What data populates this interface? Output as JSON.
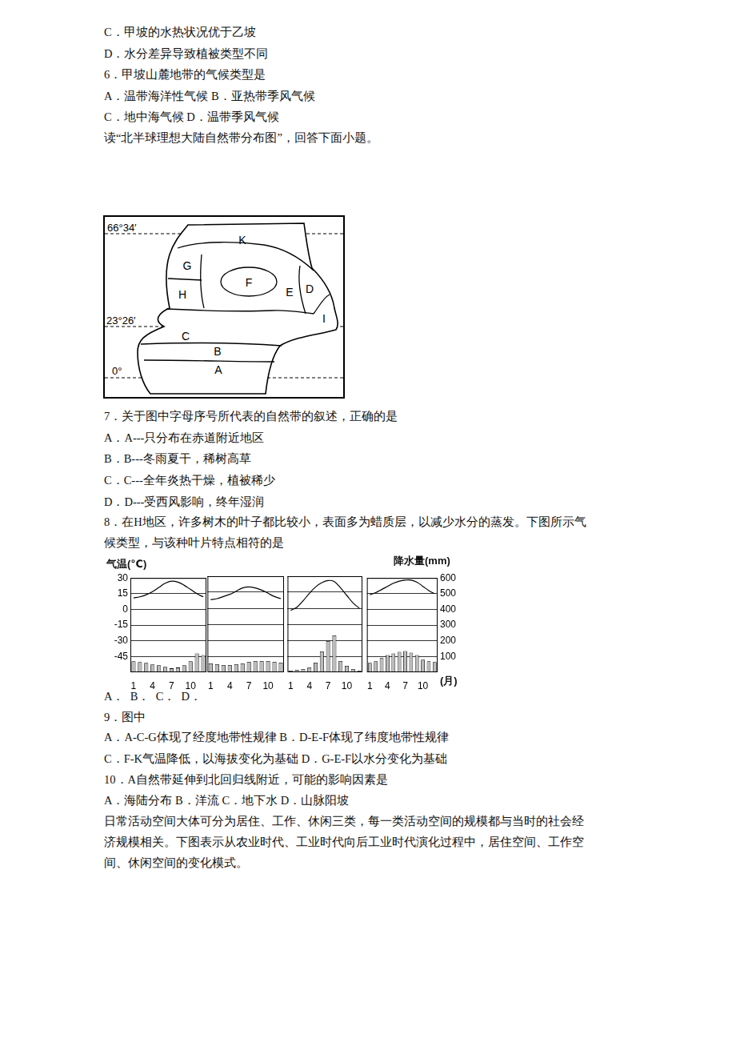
{
  "lines_top": [
    "C．甲坡的水热状况优于乙坡",
    "D．水分差异导致植被类型不同",
    "6．甲坡山麓地带的气候类型是",
    "A．温带海洋性气候 B．亚热带季风气候",
    "C．地中海气候 D．温带季风气候",
    "读“北半球理想大陆自然带分布图”，回答下面小题。"
  ],
  "map": {
    "latitudes": [
      "66°34′",
      "23°26′",
      "0°"
    ],
    "zones": [
      "K",
      "G",
      "F",
      "H",
      "E",
      "D",
      "I",
      "C",
      "B",
      "A"
    ]
  },
  "lines_middle": [
    "7．关于图中字母序号所代表的自然带的叙述，正确的是",
    "A．A---只分布在赤道附近地区",
    "B．B---冬雨夏干，稀树高草",
    "C．C---全年炎热干燥，植被稀少",
    "D．D---受西风影响，终年湿润",
    "8．在H地区，许多树木的叶子都比较小，表面多为蜡质层，以减少水分的蒸发。下图所示气",
    "候类型，与该种叶片特点相符的是"
  ],
  "chart_data": [
    {
      "type": "bar",
      "y_label": "气温(℃)",
      "categories": [
        "1",
        null,
        null,
        "4",
        null,
        null,
        "7",
        null,
        null,
        "10",
        null,
        null
      ],
      "series": [
        {
          "type": "line",
          "color": "#000000",
          "values": [
            11,
            12,
            14,
            17,
            21,
            25,
            27,
            26,
            23,
            19,
            15,
            12
          ]
        },
        {
          "type": "bar",
          "axis": "y2",
          "color": "#bbbbbb",
          "values": [
            70,
            65,
            60,
            50,
            45,
            35,
            25,
            30,
            45,
            70,
            120,
            110
          ]
        }
      ],
      "ylim": [
        -60,
        30
      ],
      "yticks": [
        30,
        15,
        0,
        -15,
        -30,
        -45
      ],
      "y2lim": [
        0,
        600
      ],
      "grid": true
    },
    {
      "type": "bar",
      "categories": [
        "1",
        null,
        null,
        "4",
        null,
        null,
        "7",
        null,
        null,
        "10",
        null,
        null
      ],
      "series": [
        {
          "type": "line",
          "color": "#000000",
          "values": [
            8,
            9,
            11,
            13,
            16,
            19,
            20,
            19,
            17,
            14,
            11,
            9
          ]
        },
        {
          "type": "bar",
          "axis": "y2",
          "color": "#bbbbbb",
          "values": [
            55,
            50,
            45,
            45,
            50,
            55,
            65,
            70,
            70,
            70,
            65,
            60
          ]
        }
      ],
      "ylim": [
        -60,
        30
      ],
      "yticks": [
        30,
        15,
        0,
        -15,
        -30,
        -45
      ],
      "y2lim": [
        0,
        600
      ],
      "grid": true,
      "tick_labels": "x"
    },
    {
      "type": "bar",
      "categories": [
        "1",
        null,
        null,
        "4",
        null,
        null,
        "7",
        null,
        null,
        "10",
        null,
        null
      ],
      "series": [
        {
          "type": "line",
          "color": "#000000",
          "values": [
            -2,
            1,
            7,
            14,
            20,
            24,
            26,
            25,
            19,
            12,
            5,
            0
          ]
        },
        {
          "type": "bar",
          "axis": "y2",
          "color": "#bbbbbb",
          "values": [
            10,
            15,
            20,
            30,
            60,
            130,
            195,
            230,
            70,
            40,
            20,
            10
          ]
        }
      ],
      "ylim": [
        -60,
        30
      ],
      "yticks": [
        30,
        15,
        0,
        -15,
        -30,
        -45
      ],
      "y2lim": [
        0,
        600
      ],
      "grid": true,
      "tick_labels": "x"
    },
    {
      "type": "bar",
      "y2_label": "降水量(mm)",
      "x_label": "(月)",
      "categories": [
        "1",
        null,
        null,
        "4",
        null,
        null,
        "7",
        null,
        null,
        "10",
        null,
        null
      ],
      "series": [
        {
          "type": "line",
          "color": "#000000",
          "values": [
            14,
            16,
            19,
            22,
            25,
            27,
            28,
            28,
            26,
            22,
            18,
            15
          ]
        },
        {
          "type": "bar",
          "axis": "y2",
          "color": "#bbbbbb",
          "values": [
            60,
            70,
            90,
            110,
            120,
            130,
            135,
            125,
            110,
            80,
            70,
            65
          ]
        }
      ],
      "ylim": [
        -60,
        30
      ],
      "y2lim": [
        0,
        600
      ],
      "y2ticks": [
        600,
        500,
        400,
        300,
        200,
        100
      ],
      "grid": true
    }
  ],
  "lines_bottom": [
    "A．  B．  C．  D．",
    "9．图中",
    "A．A-C-G体现了经度地带性规律 B．D-E-F体现了纬度地带性规律",
    "C．F-K气温降低，以海拔变化为基础 D．G-E-F以水分变化为基础",
    "10．A自然带延伸到北回归线附近，可能的影响因素是",
    "A．海陆分布 B．洋流 C．地下水 D．山脉阳坡",
    "日常活动空间大体可分为居住、工作、休闲三类，每一类活动空间的规模都与当时的社会经",
    "济规模相关。下图表示从农业时代、工业时代向后工业时代演化过程中，居住空间、工作空",
    "间、休闲空间的变化模式。"
  ]
}
